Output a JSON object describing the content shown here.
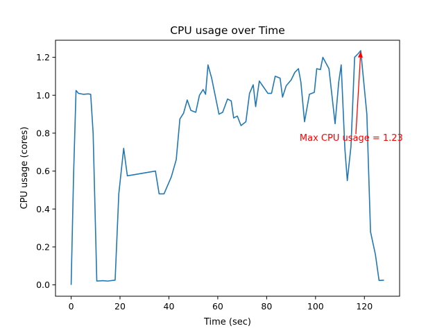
{
  "chart_data": {
    "type": "line",
    "title": "CPU usage over Time",
    "xlabel": "Time (sec)",
    "ylabel": "CPU usage (cores)",
    "xlim": [
      -6.4,
      134.4
    ],
    "ylim": [
      -0.06,
      1.29
    ],
    "xticks": [
      0,
      20,
      40,
      60,
      80,
      100,
      120
    ],
    "yticks": [
      0.0,
      0.2,
      0.4,
      0.6,
      0.8,
      1.0,
      1.2
    ],
    "xtick_labels": [
      "0",
      "20",
      "40",
      "60",
      "80",
      "100",
      "120"
    ],
    "ytick_labels": [
      "0.0",
      "0.2",
      "0.4",
      "0.6",
      "0.8",
      "1.0",
      "1.2"
    ],
    "grid": false,
    "series": [
      {
        "color": "#1f77b4",
        "points": [
          [
            0,
            0.0
          ],
          [
            1,
            0.58
          ],
          [
            2,
            1.025
          ],
          [
            3,
            1.01
          ],
          [
            5,
            1.005
          ],
          [
            7,
            1.007
          ],
          [
            8,
            1.005
          ],
          [
            9,
            0.8
          ],
          [
            10.5,
            0.02
          ],
          [
            13,
            0.022
          ],
          [
            15,
            0.02
          ],
          [
            18,
            0.025
          ],
          [
            19.5,
            0.48
          ],
          [
            21.5,
            0.72
          ],
          [
            23,
            0.575
          ],
          [
            34.5,
            0.6
          ],
          [
            36,
            0.48
          ],
          [
            38,
            0.48
          ],
          [
            41,
            0.57
          ],
          [
            43,
            0.66
          ],
          [
            44.5,
            0.875
          ],
          [
            46,
            0.905
          ],
          [
            47.5,
            0.975
          ],
          [
            49,
            0.92
          ],
          [
            51,
            0.91
          ],
          [
            52.5,
            1.0
          ],
          [
            54,
            1.03
          ],
          [
            55,
            1.005
          ],
          [
            56,
            1.16
          ],
          [
            57.5,
            1.09
          ],
          [
            60.5,
            0.9
          ],
          [
            62,
            0.91
          ],
          [
            64,
            0.98
          ],
          [
            65.5,
            0.97
          ],
          [
            66.5,
            0.88
          ],
          [
            68,
            0.89
          ],
          [
            69.5,
            0.84
          ],
          [
            71.5,
            0.86
          ],
          [
            73,
            1.01
          ],
          [
            74.5,
            1.055
          ],
          [
            75.5,
            0.94
          ],
          [
            77,
            1.075
          ],
          [
            80.5,
            1.01
          ],
          [
            82,
            1.01
          ],
          [
            83.5,
            1.1
          ],
          [
            85.5,
            1.09
          ],
          [
            86.5,
            0.99
          ],
          [
            88,
            1.05
          ],
          [
            90,
            1.08
          ],
          [
            91.5,
            1.12
          ],
          [
            93,
            1.14
          ],
          [
            94,
            1.07
          ],
          [
            95.5,
            0.86
          ],
          [
            97.5,
            1.005
          ],
          [
            99.5,
            1.015
          ],
          [
            100.5,
            1.14
          ],
          [
            102,
            1.135
          ],
          [
            103,
            1.2
          ],
          [
            105.5,
            1.14
          ],
          [
            108,
            0.85
          ],
          [
            109.5,
            1.07
          ],
          [
            110.5,
            1.16
          ],
          [
            112,
            0.72
          ],
          [
            113,
            0.55
          ],
          [
            114.5,
            0.73
          ],
          [
            116,
            1.2
          ],
          [
            117.5,
            1.22
          ],
          [
            118.5,
            1.235
          ],
          [
            121,
            0.9
          ],
          [
            122.5,
            0.28
          ],
          [
            124.5,
            0.16
          ],
          [
            126,
            0.023
          ],
          [
            128,
            0.025
          ]
        ]
      }
    ],
    "annotation": {
      "text": "Max CPU usage = 1.23",
      "color": "#ff0000",
      "text_x": 93.5,
      "text_y": 0.76,
      "arrow_start": [
        116.5,
        0.795
      ],
      "arrow_end": [
        118.5,
        1.232
      ]
    }
  }
}
